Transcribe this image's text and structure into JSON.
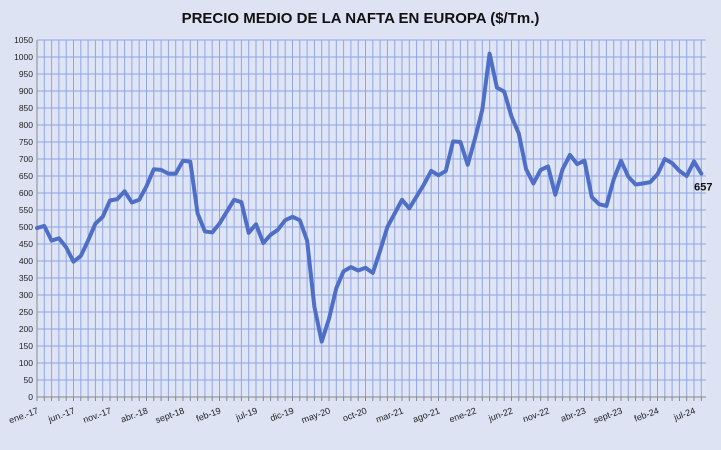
{
  "chart_data": {
    "type": "line",
    "title": "PRECIO MEDIO DE LA NAFTA EN EUROPA ($/Tm.)",
    "xlabel": "",
    "ylabel": "",
    "ylim": [
      0,
      1050
    ],
    "ytick_step": 50,
    "grid": true,
    "x_tick_labels": [
      "ene.-17",
      "jun.-17",
      "nov.-17",
      "abr.-18",
      "sept-18",
      "feb-19",
      "jul-19",
      "dic-19",
      "may-20",
      "oct-20",
      "mar-21",
      "ago-21",
      "ene-22",
      "jun-22",
      "nov-22",
      "abr-23",
      "sept-23",
      "feb-24",
      "jul-24"
    ],
    "x_tick_every_months": 5,
    "x_range": [
      "ene-17",
      "ago-24"
    ],
    "series": [
      {
        "color": "#4f6fc6",
        "values": [
          497,
          503,
          460,
          467,
          440,
          398,
          415,
          460,
          510,
          530,
          578,
          582,
          605,
          572,
          580,
          620,
          670,
          668,
          657,
          657,
          695,
          692,
          540,
          487,
          484,
          510,
          545,
          580,
          573,
          483,
          508,
          453,
          477,
          492,
          520,
          530,
          520,
          460,
          265,
          163,
          230,
          320,
          370,
          382,
          372,
          380,
          365,
          430,
          500,
          540,
          580,
          555,
          590,
          625,
          665,
          652,
          665,
          752,
          750,
          683,
          760,
          845,
          1010,
          910,
          898,
          825,
          775,
          670,
          628,
          668,
          678,
          595,
          670,
          712,
          685,
          695,
          588,
          567,
          562,
          640,
          695,
          648,
          625,
          628,
          632,
          655,
          700,
          688,
          665,
          650,
          693,
          657
        ]
      }
    ],
    "last_value_label": "657",
    "colors": {
      "background": "#dde3f3",
      "grid": "#8fa5e8",
      "line": "#4f6fc6"
    }
  }
}
